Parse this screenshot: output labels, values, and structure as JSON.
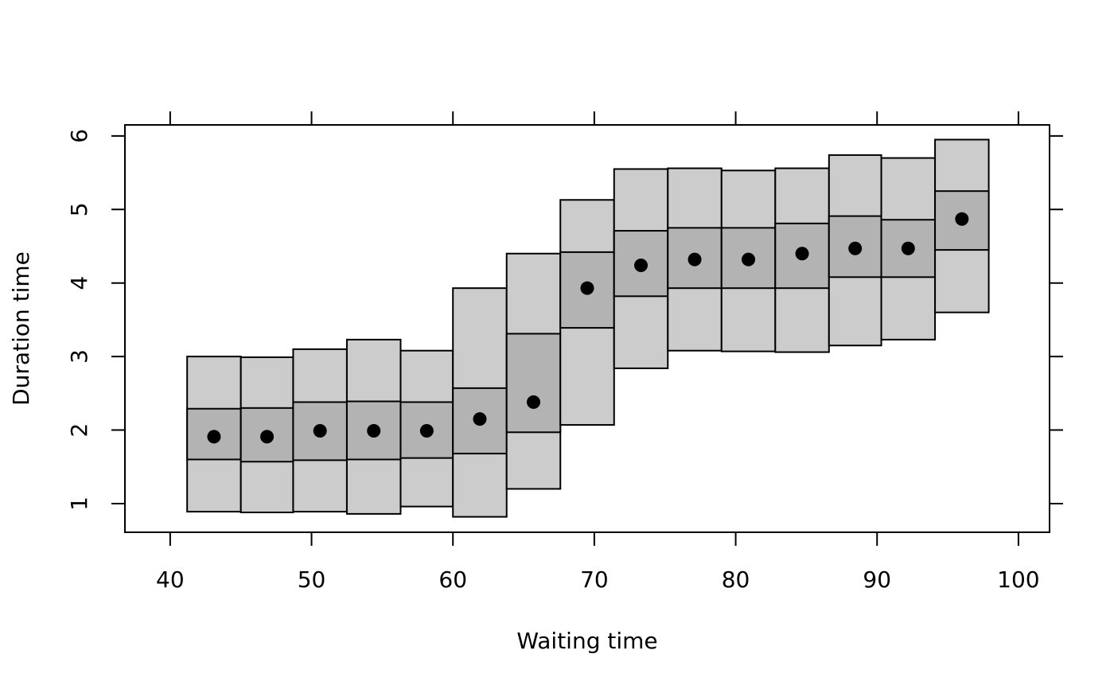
{
  "chart_data": {
    "type": "boxplot-bins",
    "title": "",
    "xlabel": "Waiting time",
    "ylabel": "Duration time",
    "xlim": [
      36.8,
      102.2
    ],
    "ylim": [
      0.61,
      6.15
    ],
    "x_ticks": [
      40,
      50,
      60,
      70,
      80,
      90,
      100
    ],
    "y_ticks": [
      1,
      2,
      3,
      4,
      5,
      6
    ],
    "colors": {
      "outer": "#cccccc",
      "inner": "#b3b3b3",
      "stroke": "#000000",
      "point": "#000000"
    },
    "bins": [
      {
        "x0": 41.2,
        "x1": 45.0,
        "lo": 0.89,
        "q1": 1.6,
        "q3": 2.29,
        "hi": 3.0,
        "mid": 1.91
      },
      {
        "x0": 45.0,
        "x1": 48.7,
        "lo": 0.88,
        "q1": 1.57,
        "q3": 2.3,
        "hi": 2.99,
        "mid": 1.91
      },
      {
        "x0": 48.7,
        "x1": 52.5,
        "lo": 0.89,
        "q1": 1.59,
        "q3": 2.38,
        "hi": 3.1,
        "mid": 1.99
      },
      {
        "x0": 52.5,
        "x1": 56.3,
        "lo": 0.86,
        "q1": 1.6,
        "q3": 2.39,
        "hi": 3.23,
        "mid": 1.99
      },
      {
        "x0": 56.3,
        "x1": 60.0,
        "lo": 0.96,
        "q1": 1.62,
        "q3": 2.38,
        "hi": 3.08,
        "mid": 1.99
      },
      {
        "x0": 60.0,
        "x1": 63.8,
        "lo": 0.82,
        "q1": 1.68,
        "q3": 2.57,
        "hi": 3.93,
        "mid": 2.15
      },
      {
        "x0": 63.8,
        "x1": 67.6,
        "lo": 1.2,
        "q1": 1.97,
        "q3": 3.31,
        "hi": 4.4,
        "mid": 2.38
      },
      {
        "x0": 67.6,
        "x1": 71.4,
        "lo": 2.07,
        "q1": 3.39,
        "q3": 4.42,
        "hi": 5.13,
        "mid": 3.93
      },
      {
        "x0": 71.4,
        "x1": 75.2,
        "lo": 2.84,
        "q1": 3.82,
        "q3": 4.71,
        "hi": 5.55,
        "mid": 4.24
      },
      {
        "x0": 75.2,
        "x1": 79.0,
        "lo": 3.08,
        "q1": 3.93,
        "q3": 4.75,
        "hi": 5.56,
        "mid": 4.32
      },
      {
        "x0": 79.0,
        "x1": 82.8,
        "lo": 3.07,
        "q1": 3.93,
        "q3": 4.75,
        "hi": 5.53,
        "mid": 4.32
      },
      {
        "x0": 82.8,
        "x1": 86.6,
        "lo": 3.06,
        "q1": 3.93,
        "q3": 4.81,
        "hi": 5.56,
        "mid": 4.4
      },
      {
        "x0": 86.6,
        "x1": 90.3,
        "lo": 3.15,
        "q1": 4.08,
        "q3": 4.91,
        "hi": 5.74,
        "mid": 4.47
      },
      {
        "x0": 90.3,
        "x1": 94.1,
        "lo": 3.23,
        "q1": 4.08,
        "q3": 4.86,
        "hi": 5.7,
        "mid": 4.47
      },
      {
        "x0": 94.1,
        "x1": 97.9,
        "lo": 3.6,
        "q1": 4.45,
        "q3": 5.25,
        "hi": 5.95,
        "mid": 4.87
      }
    ]
  }
}
